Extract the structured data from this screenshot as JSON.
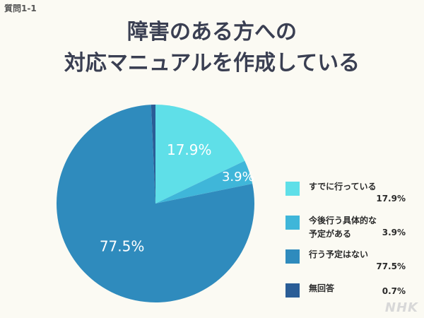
{
  "header": {
    "question": "質問1-1",
    "title_line1": "障害のある方への",
    "title_line2": "対応マニュアルを作成している"
  },
  "chart_data": {
    "type": "pie",
    "start": "12 o'clock",
    "direction": "clockwise",
    "slices": [
      {
        "label": "すでに行っている",
        "value": 17.9,
        "value_text": "17.9%",
        "color": "#5fdfe8",
        "show_in_pie": true
      },
      {
        "label": "今後行う具体的な予定がある",
        "label_lines": [
          "今後行う具体的な",
          "予定がある"
        ],
        "value": 3.9,
        "value_text": "3.9%",
        "color": "#3fb6d9",
        "show_in_pie": true
      },
      {
        "label": "行う予定はない",
        "value": 77.5,
        "value_text": "77.5%",
        "color": "#2f8bbd",
        "show_in_pie": true
      },
      {
        "label": "無回答",
        "value": 0.7,
        "value_text": "0.7%",
        "color": "#2a5d96",
        "show_in_pie": false
      }
    ],
    "legend_position": "right"
  },
  "footer": {
    "brand": "NHK"
  }
}
